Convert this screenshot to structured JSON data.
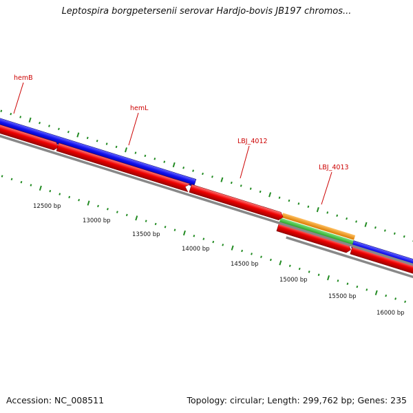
{
  "title": "Leptospira borgpetersenii serovar Hardjo-bovis JB197 chromos...",
  "footer": {
    "accession": "Accession: NC_008511",
    "topology": "Topology: circular; Length: 299,762 bp; Genes: 235"
  },
  "colors": {
    "forward_strand": "#1010ee",
    "reverse_strand": "#ee0000",
    "orange_feature": "#f39c12",
    "green_feature": "#3cc43c",
    "backbone": "#888888",
    "ticks": "#228b22",
    "gene_label": "#cc0000"
  },
  "genes": [
    {
      "name": "hemB"
    },
    {
      "name": "hemL"
    },
    {
      "name": "LBJ_4012"
    },
    {
      "name": "LBJ_4013"
    }
  ],
  "scale_labels": [
    "12500 bp",
    "13000 bp",
    "13500 bp",
    "14000 bp",
    "14500 bp",
    "15000 bp",
    "15500 bp",
    "16000 bp"
  ]
}
